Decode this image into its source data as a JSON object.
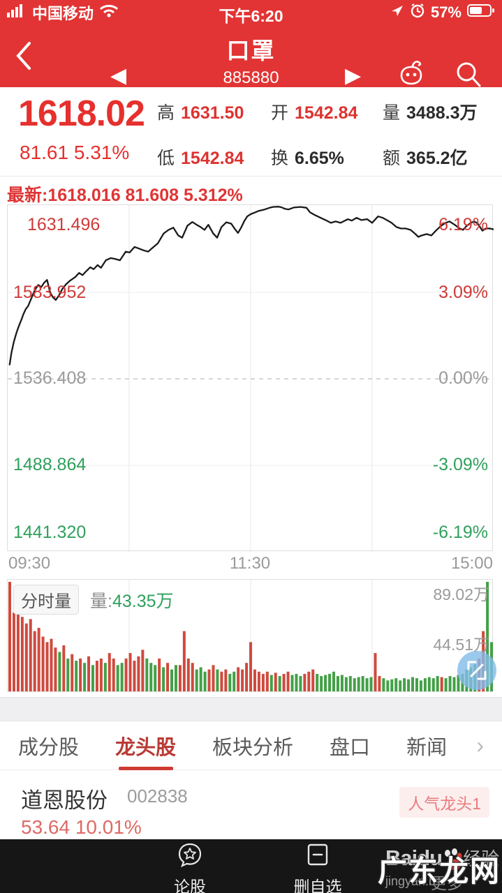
{
  "colors": {
    "header_red": "#e23434",
    "price_red": "#e5302e",
    "value_red": "#dd3330",
    "text_dark": "#2b2b2b",
    "green": "#2fa05c",
    "gray": "#9a9a9a",
    "line_black": "#1a1a1a",
    "bar_red": "#cf4a3e",
    "bar_green": "#43a047",
    "tab_active": "#b93a35",
    "badge_bg": "#fdeeee",
    "badge_text": "#e87c7c",
    "expand_btn_blue": "#82bce8"
  },
  "status_bar": {
    "carrier": "中国移动",
    "time": "下午6:20",
    "battery": "57%"
  },
  "nav": {
    "title": "口罩",
    "code": "885880"
  },
  "quote": {
    "price": "1618.02",
    "change_line": "81.61  5.31%",
    "stats": [
      {
        "label": "高",
        "value": "1631.50"
      },
      {
        "label": "开",
        "value": "1542.84"
      },
      {
        "label": "量",
        "value": "3488.3万"
      },
      {
        "label": "低",
        "value": "1542.84"
      },
      {
        "label": "换",
        "value": "6.65%"
      },
      {
        "label": "额",
        "value": "365.2亿"
      }
    ]
  },
  "chart": {
    "latest_line": "最新:1618.016 81.608 5.312%",
    "y_left": [
      "1631.496",
      "1583.952",
      "1536.408",
      "1488.864",
      "1441.320"
    ],
    "y_right": [
      "6.19%",
      "3.09%",
      "0.00%",
      "-3.09%",
      "-6.19%"
    ],
    "x_ticks": [
      "09:30",
      "11:30",
      "15:00"
    ]
  },
  "volume": {
    "chip": "分时量",
    "legend_label": "量:",
    "legend_value": "43.35万",
    "y_right": [
      "89.02万",
      "44.51万"
    ]
  },
  "chart_data": [
    {
      "type": "line",
      "name": "intraday-price-percent",
      "x_ticks": [
        "09:30",
        "11:30",
        "15:00"
      ],
      "y_axis_price": [
        1631.496,
        1583.952,
        1536.408,
        1488.864,
        1441.32
      ],
      "y_axis_pct": [
        6.19,
        3.09,
        0.0,
        -3.09,
        -6.19
      ],
      "baseline_price": 1536.408,
      "ylim_pct": [
        -6.19,
        6.19
      ],
      "grid": true,
      "points": [
        [
          0.004,
          0.51
        ],
        [
          0.008,
          0.96
        ],
        [
          0.013,
          1.34
        ],
        [
          0.018,
          1.64
        ],
        [
          0.022,
          1.84
        ],
        [
          0.026,
          2.02
        ],
        [
          0.029,
          2.15
        ],
        [
          0.032,
          2.3
        ],
        [
          0.037,
          2.49
        ],
        [
          0.042,
          2.6
        ],
        [
          0.048,
          2.85
        ],
        [
          0.056,
          3.18
        ],
        [
          0.063,
          3.36
        ],
        [
          0.069,
          3.28
        ],
        [
          0.075,
          3.44
        ],
        [
          0.081,
          3.54
        ],
        [
          0.087,
          3.11
        ],
        [
          0.093,
          2.92
        ],
        [
          0.099,
          2.82
        ],
        [
          0.106,
          3.0
        ],
        [
          0.113,
          3.23
        ],
        [
          0.12,
          3.38
        ],
        [
          0.128,
          3.51
        ],
        [
          0.139,
          3.64
        ],
        [
          0.147,
          3.79
        ],
        [
          0.154,
          3.71
        ],
        [
          0.162,
          3.86
        ],
        [
          0.17,
          3.99
        ],
        [
          0.177,
          3.92
        ],
        [
          0.185,
          4.07
        ],
        [
          0.192,
          3.97
        ],
        [
          0.202,
          4.24
        ],
        [
          0.212,
          4.32
        ],
        [
          0.221,
          4.29
        ],
        [
          0.231,
          4.24
        ],
        [
          0.243,
          4.55
        ],
        [
          0.251,
          4.52
        ],
        [
          0.261,
          4.72
        ],
        [
          0.269,
          4.67
        ],
        [
          0.279,
          4.6
        ],
        [
          0.289,
          4.55
        ],
        [
          0.297,
          4.67
        ],
        [
          0.309,
          4.85
        ],
        [
          0.321,
          5.2
        ],
        [
          0.331,
          5.33
        ],
        [
          0.341,
          5.41
        ],
        [
          0.351,
          5.13
        ],
        [
          0.359,
          5.05
        ],
        [
          0.37,
          5.48
        ],
        [
          0.38,
          5.61
        ],
        [
          0.389,
          5.51
        ],
        [
          0.397,
          5.43
        ],
        [
          0.405,
          5.33
        ],
        [
          0.413,
          5.51
        ],
        [
          0.423,
          5.2
        ],
        [
          0.431,
          5.05
        ],
        [
          0.44,
          5.43
        ],
        [
          0.45,
          5.6
        ],
        [
          0.46,
          5.55
        ],
        [
          0.468,
          5.35
        ],
        [
          0.474,
          5.22
        ],
        [
          0.48,
          5.4
        ],
        [
          0.487,
          5.65
        ],
        [
          0.493,
          5.81
        ],
        [
          0.5,
          5.89
        ],
        [
          0.51,
          5.96
        ],
        [
          0.517,
          6.01
        ],
        [
          0.529,
          6.06
        ],
        [
          0.539,
          6.12
        ],
        [
          0.546,
          6.15
        ],
        [
          0.557,
          6.16
        ],
        [
          0.563,
          6.14
        ],
        [
          0.571,
          6.08
        ],
        [
          0.578,
          6.06
        ],
        [
          0.589,
          6.13
        ],
        [
          0.603,
          6.15
        ],
        [
          0.615,
          6.12
        ],
        [
          0.622,
          5.96
        ],
        [
          0.632,
          5.86
        ],
        [
          0.644,
          5.76
        ],
        [
          0.654,
          5.68
        ],
        [
          0.665,
          5.58
        ],
        [
          0.675,
          5.63
        ],
        [
          0.685,
          5.58
        ],
        [
          0.7,
          5.71
        ],
        [
          0.708,
          5.66
        ],
        [
          0.718,
          5.76
        ],
        [
          0.728,
          5.68
        ],
        [
          0.74,
          5.71
        ],
        [
          0.75,
          5.58
        ],
        [
          0.762,
          5.81
        ],
        [
          0.772,
          5.76
        ],
        [
          0.78,
          5.68
        ],
        [
          0.79,
          5.58
        ],
        [
          0.8,
          5.43
        ],
        [
          0.809,
          5.38
        ],
        [
          0.819,
          5.38
        ],
        [
          0.829,
          5.33
        ],
        [
          0.838,
          5.2
        ],
        [
          0.845,
          5.08
        ],
        [
          0.852,
          5.13
        ],
        [
          0.862,
          5.18
        ],
        [
          0.872,
          5.13
        ],
        [
          0.881,
          5.3
        ],
        [
          0.891,
          5.46
        ],
        [
          0.901,
          5.58
        ],
        [
          0.909,
          5.63
        ],
        [
          0.92,
          5.51
        ],
        [
          0.93,
          5.38
        ],
        [
          0.937,
          5.33
        ],
        [
          0.944,
          5.46
        ],
        [
          0.953,
          5.58
        ],
        [
          0.96,
          5.63
        ],
        [
          0.967,
          5.56
        ],
        [
          0.977,
          5.3
        ],
        [
          0.984,
          5.38
        ],
        [
          0.992,
          5.38
        ],
        [
          1.0,
          5.35
        ]
      ]
    },
    {
      "type": "bar",
      "name": "minute-volume",
      "legend": "分时量",
      "current": "43.35万",
      "y_ticks": [
        "89.02万",
        "44.51万"
      ],
      "max_value_wan": 89.02,
      "bars": [
        [
          1.0,
          "r"
        ],
        [
          0.72,
          "r"
        ],
        [
          0.78,
          "r"
        ],
        [
          0.68,
          "r"
        ],
        [
          0.62,
          "r"
        ],
        [
          0.66,
          "r"
        ],
        [
          0.55,
          "r"
        ],
        [
          0.58,
          "r"
        ],
        [
          0.5,
          "r"
        ],
        [
          0.45,
          "r"
        ],
        [
          0.48,
          "r"
        ],
        [
          0.4,
          "r"
        ],
        [
          0.36,
          "g"
        ],
        [
          0.42,
          "r"
        ],
        [
          0.3,
          "g"
        ],
        [
          0.34,
          "r"
        ],
        [
          0.28,
          "g"
        ],
        [
          0.3,
          "r"
        ],
        [
          0.26,
          "g"
        ],
        [
          0.32,
          "r"
        ],
        [
          0.24,
          "g"
        ],
        [
          0.28,
          "r"
        ],
        [
          0.3,
          "r"
        ],
        [
          0.26,
          "g"
        ],
        [
          0.35,
          "r"
        ],
        [
          0.3,
          "r"
        ],
        [
          0.24,
          "g"
        ],
        [
          0.26,
          "g"
        ],
        [
          0.3,
          "r"
        ],
        [
          0.35,
          "r"
        ],
        [
          0.28,
          "r"
        ],
        [
          0.32,
          "r"
        ],
        [
          0.38,
          "r"
        ],
        [
          0.3,
          "g"
        ],
        [
          0.26,
          "g"
        ],
        [
          0.24,
          "g"
        ],
        [
          0.3,
          "r"
        ],
        [
          0.22,
          "g"
        ],
        [
          0.26,
          "r"
        ],
        [
          0.2,
          "g"
        ],
        [
          0.24,
          "g"
        ],
        [
          0.24,
          "r"
        ],
        [
          0.55,
          "r"
        ],
        [
          0.3,
          "r"
        ],
        [
          0.26,
          "r"
        ],
        [
          0.2,
          "g"
        ],
        [
          0.22,
          "g"
        ],
        [
          0.18,
          "g"
        ],
        [
          0.2,
          "r"
        ],
        [
          0.24,
          "r"
        ],
        [
          0.2,
          "g"
        ],
        [
          0.18,
          "r"
        ],
        [
          0.2,
          "r"
        ],
        [
          0.16,
          "g"
        ],
        [
          0.18,
          "g"
        ],
        [
          0.22,
          "r"
        ],
        [
          0.2,
          "r"
        ],
        [
          0.26,
          "r"
        ],
        [
          0.45,
          "r"
        ],
        [
          0.2,
          "r"
        ],
        [
          0.18,
          "r"
        ],
        [
          0.16,
          "r"
        ],
        [
          0.18,
          "r"
        ],
        [
          0.15,
          "g"
        ],
        [
          0.17,
          "r"
        ],
        [
          0.14,
          "g"
        ],
        [
          0.16,
          "r"
        ],
        [
          0.18,
          "r"
        ],
        [
          0.15,
          "g"
        ],
        [
          0.16,
          "g"
        ],
        [
          0.14,
          "g"
        ],
        [
          0.16,
          "r"
        ],
        [
          0.18,
          "r"
        ],
        [
          0.2,
          "r"
        ],
        [
          0.16,
          "g"
        ],
        [
          0.14,
          "g"
        ],
        [
          0.15,
          "g"
        ],
        [
          0.16,
          "g"
        ],
        [
          0.18,
          "g"
        ],
        [
          0.14,
          "g"
        ],
        [
          0.15,
          "g"
        ],
        [
          0.13,
          "g"
        ],
        [
          0.14,
          "g"
        ],
        [
          0.12,
          "g"
        ],
        [
          0.13,
          "g"
        ],
        [
          0.14,
          "g"
        ],
        [
          0.12,
          "g"
        ],
        [
          0.13,
          "g"
        ],
        [
          0.35,
          "r"
        ],
        [
          0.14,
          "r"
        ],
        [
          0.12,
          "g"
        ],
        [
          0.1,
          "g"
        ],
        [
          0.11,
          "g"
        ],
        [
          0.12,
          "g"
        ],
        [
          0.1,
          "g"
        ],
        [
          0.12,
          "g"
        ],
        [
          0.11,
          "g"
        ],
        [
          0.13,
          "g"
        ],
        [
          0.12,
          "g"
        ],
        [
          0.1,
          "g"
        ],
        [
          0.12,
          "g"
        ],
        [
          0.13,
          "g"
        ],
        [
          0.12,
          "g"
        ],
        [
          0.14,
          "g"
        ],
        [
          0.13,
          "r"
        ],
        [
          0.12,
          "g"
        ],
        [
          0.14,
          "g"
        ],
        [
          0.13,
          "g"
        ],
        [
          0.15,
          "g"
        ],
        [
          0.16,
          "g"
        ],
        [
          0.2,
          "g"
        ],
        [
          0.22,
          "g"
        ],
        [
          0.25,
          "g"
        ],
        [
          0.3,
          "r"
        ],
        [
          0.55,
          "r"
        ],
        [
          1.0,
          "g"
        ],
        [
          0.45,
          "g"
        ]
      ]
    }
  ],
  "tabs": {
    "items": [
      {
        "label": "成分股"
      },
      {
        "label": "龙头股"
      },
      {
        "label": "板块分析"
      },
      {
        "label": "盘口"
      },
      {
        "label": "新闻"
      }
    ],
    "more_chevron": "›"
  },
  "stock": {
    "name": "道恩股份",
    "code": "002838",
    "price_change": "53.64 10.01%",
    "badge": "人气龙头1"
  },
  "bottom_nav": {
    "items": [
      {
        "label": "论股"
      },
      {
        "label": "删自选"
      },
      {
        "label": "更多"
      }
    ],
    "baidu_text": "Baidu",
    "baidu_suffix": "经验",
    "baidu_url": "jingyan.b",
    "watermark": "广东龙网"
  },
  "glyphs": {
    "prev": "◀",
    "next": "▶"
  }
}
